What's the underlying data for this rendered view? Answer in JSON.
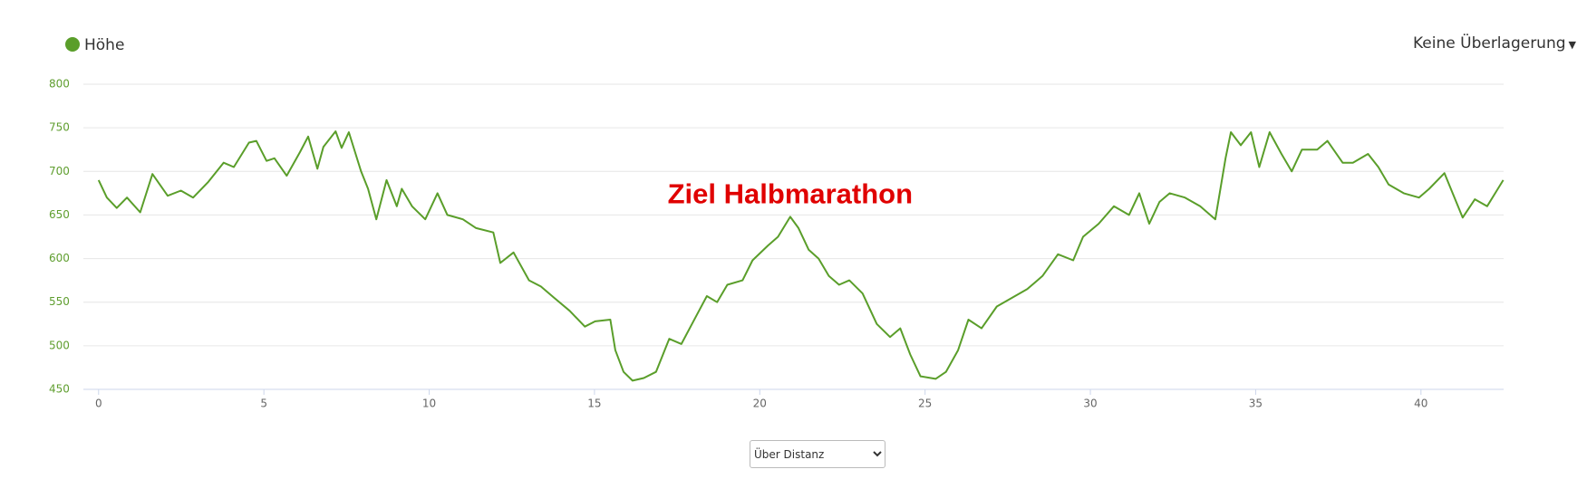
{
  "chart_data": {
    "type": "line",
    "series": [
      {
        "name": "Höhe",
        "color": "#5a9e2a",
        "x": [
          0,
          0.25,
          0.55,
          0.86,
          1.26,
          1.63,
          2.09,
          2.49,
          2.86,
          3.32,
          3.78,
          4.09,
          4.55,
          4.77,
          5.08,
          5.32,
          5.69,
          6.09,
          6.34,
          6.62,
          6.8,
          7.17,
          7.35,
          7.57,
          7.94,
          8.15,
          8.4,
          8.71,
          9.02,
          9.17,
          9.48,
          9.88,
          10.25,
          10.55,
          11.02,
          11.42,
          11.94,
          12.15,
          12.55,
          13.02,
          13.38,
          13.78,
          14.25,
          14.71,
          15.02,
          15.48,
          15.63,
          15.88,
          16.15,
          16.49,
          16.86,
          17.26,
          17.63,
          18.09,
          18.4,
          18.71,
          19.02,
          19.48,
          19.78,
          20.25,
          20.55,
          20.92,
          21.17,
          21.48,
          21.78,
          22.09,
          22.4,
          22.71,
          23.11,
          23.54,
          23.94,
          24.25,
          24.55,
          24.86,
          25.32,
          25.63,
          26,
          26.31,
          26.71,
          27.17,
          27.63,
          28.09,
          28.55,
          29.02,
          29.48,
          29.78,
          30.25,
          30.71,
          31.17,
          31.48,
          31.78,
          32.09,
          32.4,
          32.86,
          33.32,
          33.78,
          34.09,
          34.25,
          34.55,
          34.86,
          35.11,
          35.42,
          35.78,
          36.09,
          36.4,
          36.86,
          37.17,
          37.63,
          37.94,
          38.4,
          38.71,
          39.02,
          39.48,
          39.94,
          40.25,
          40.71,
          41.26,
          41.63,
          42,
          42.49
        ],
        "values": [
          690,
          670,
          658,
          670,
          653,
          697,
          672,
          678,
          670,
          688,
          710,
          705,
          733,
          735,
          712,
          715,
          695,
          722,
          740,
          703,
          728,
          746,
          727,
          745,
          700,
          680,
          645,
          690,
          660,
          680,
          660,
          645,
          675,
          650,
          645,
          635,
          630,
          595,
          607,
          575,
          568,
          555,
          540,
          522,
          528,
          530,
          495,
          470,
          460,
          463,
          470,
          508,
          502,
          535,
          557,
          550,
          570,
          575,
          598,
          615,
          625,
          648,
          635,
          610,
          600,
          580,
          570,
          575,
          560,
          525,
          510,
          520,
          490,
          465,
          462,
          470,
          495,
          530,
          520,
          545,
          555,
          565,
          580,
          605,
          598,
          625,
          640,
          660,
          650,
          675,
          640,
          665,
          675,
          670,
          660,
          645,
          715,
          745,
          730,
          745,
          705,
          745,
          720,
          700,
          725,
          725,
          735,
          710,
          710,
          720,
          705,
          685,
          675,
          670,
          680,
          698,
          647,
          668,
          660,
          690
        ]
      }
    ],
    "xlim": [
      -0.46,
      42.5
    ],
    "xticks": [
      0,
      5,
      10,
      15,
      20,
      25,
      30,
      35,
      40
    ],
    "ylim": [
      450,
      800
    ],
    "yticks": [
      450,
      500,
      550,
      600,
      650,
      700,
      750,
      800
    ],
    "grid": true,
    "legend": "top-left",
    "annotations": [
      {
        "text": "Ziel Halbmarathon",
        "x": 20.92,
        "y": 680,
        "color": "#e00000"
      }
    ]
  },
  "controls": {
    "overlay": "Keine Überlagerung",
    "mode": "Über Distanz"
  }
}
